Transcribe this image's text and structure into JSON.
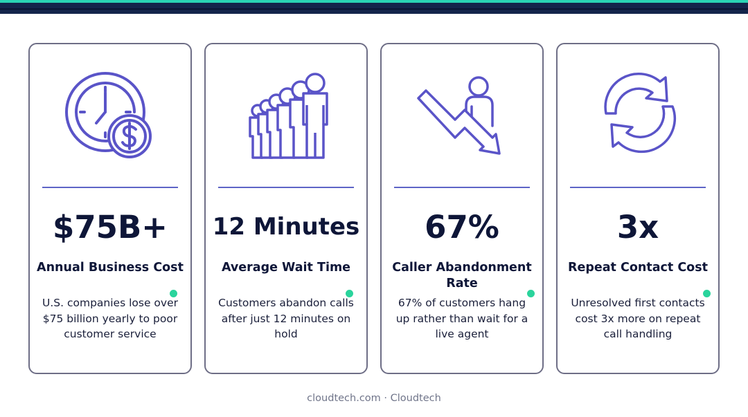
{
  "theme": {
    "navy": "#0e1638",
    "icon_purple": "#5a54c8",
    "accent_teal": "#2ad4b4",
    "dot_green": "#2ad49c",
    "card_border": "#6e6e86"
  },
  "cards": [
    {
      "icon": "clock-dollar-icon",
      "value": "$75B+",
      "label": "Annual Business Cost",
      "description": "U.S. companies lose over $75 billion yearly to poor customer service"
    },
    {
      "icon": "queue-people-icon",
      "value": "12 Minutes",
      "label": "Average Wait Time",
      "description": "Customers abandon calls after just 12 minutes on hold"
    },
    {
      "icon": "declining-arrow-person-icon",
      "value": "67%",
      "label": "Caller Abandonment Rate",
      "description": "67% of customers hang up rather than wait for a live agent"
    },
    {
      "icon": "repeat-arrows-icon",
      "value": "3x",
      "label": "Repeat Contact Cost",
      "description": "Unresolved first contacts cost 3x more on repeat call handling"
    }
  ],
  "footer": {
    "text": "cloudtech.com · Cloudtech"
  }
}
